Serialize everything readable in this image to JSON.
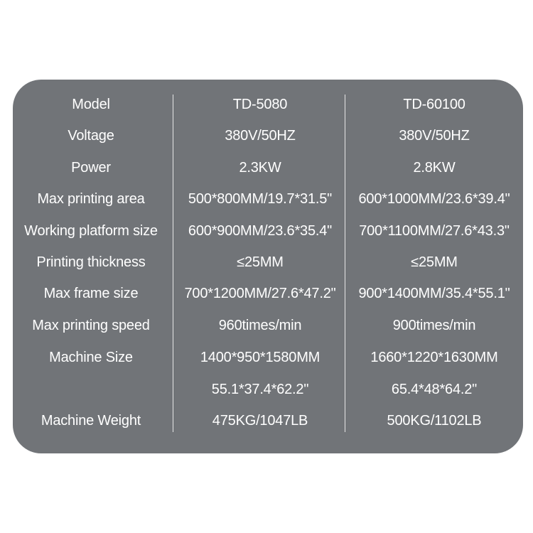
{
  "spec_table": {
    "rows": [
      {
        "label": "Model",
        "col1": "TD-5080",
        "col2": "TD-60100"
      },
      {
        "label": "Voltage",
        "col1": "380V/50HZ",
        "col2": "380V/50HZ"
      },
      {
        "label": "Power",
        "col1": "2.3KW",
        "col2": "2.8KW"
      },
      {
        "label": "Max printing area",
        "col1": "500*800MM/19.7*31.5\"",
        "col2": "600*1000MM/23.6*39.4\""
      },
      {
        "label": "Working platform size",
        "col1": "600*900MM/23.6*35.4\"",
        "col2": "700*1100MM/27.6*43.3\""
      },
      {
        "label": "Printing thickness",
        "col1": "≤25MM",
        "col2": "≤25MM"
      },
      {
        "label": "Max frame size",
        "col1": "700*1200MM/27.6*47.2\"",
        "col2": "900*1400MM/35.4*55.1\""
      },
      {
        "label": "Max printing speed",
        "col1": "960times/min",
        "col2": "900times/min"
      },
      {
        "label": "Machine Size",
        "col1": "1400*950*1580MM",
        "col2": "1660*1220*1630MM"
      },
      {
        "label": "",
        "col1": "55.1*37.4*62.2\"",
        "col2": "65.4*48*64.2\""
      },
      {
        "label": "Machine Weight",
        "col1": "475KG/1047LB",
        "col2": "500KG/1102LB"
      }
    ]
  },
  "colors": {
    "panel": "#717478",
    "text": "#ffffff",
    "divider": "#e6e6e6"
  }
}
